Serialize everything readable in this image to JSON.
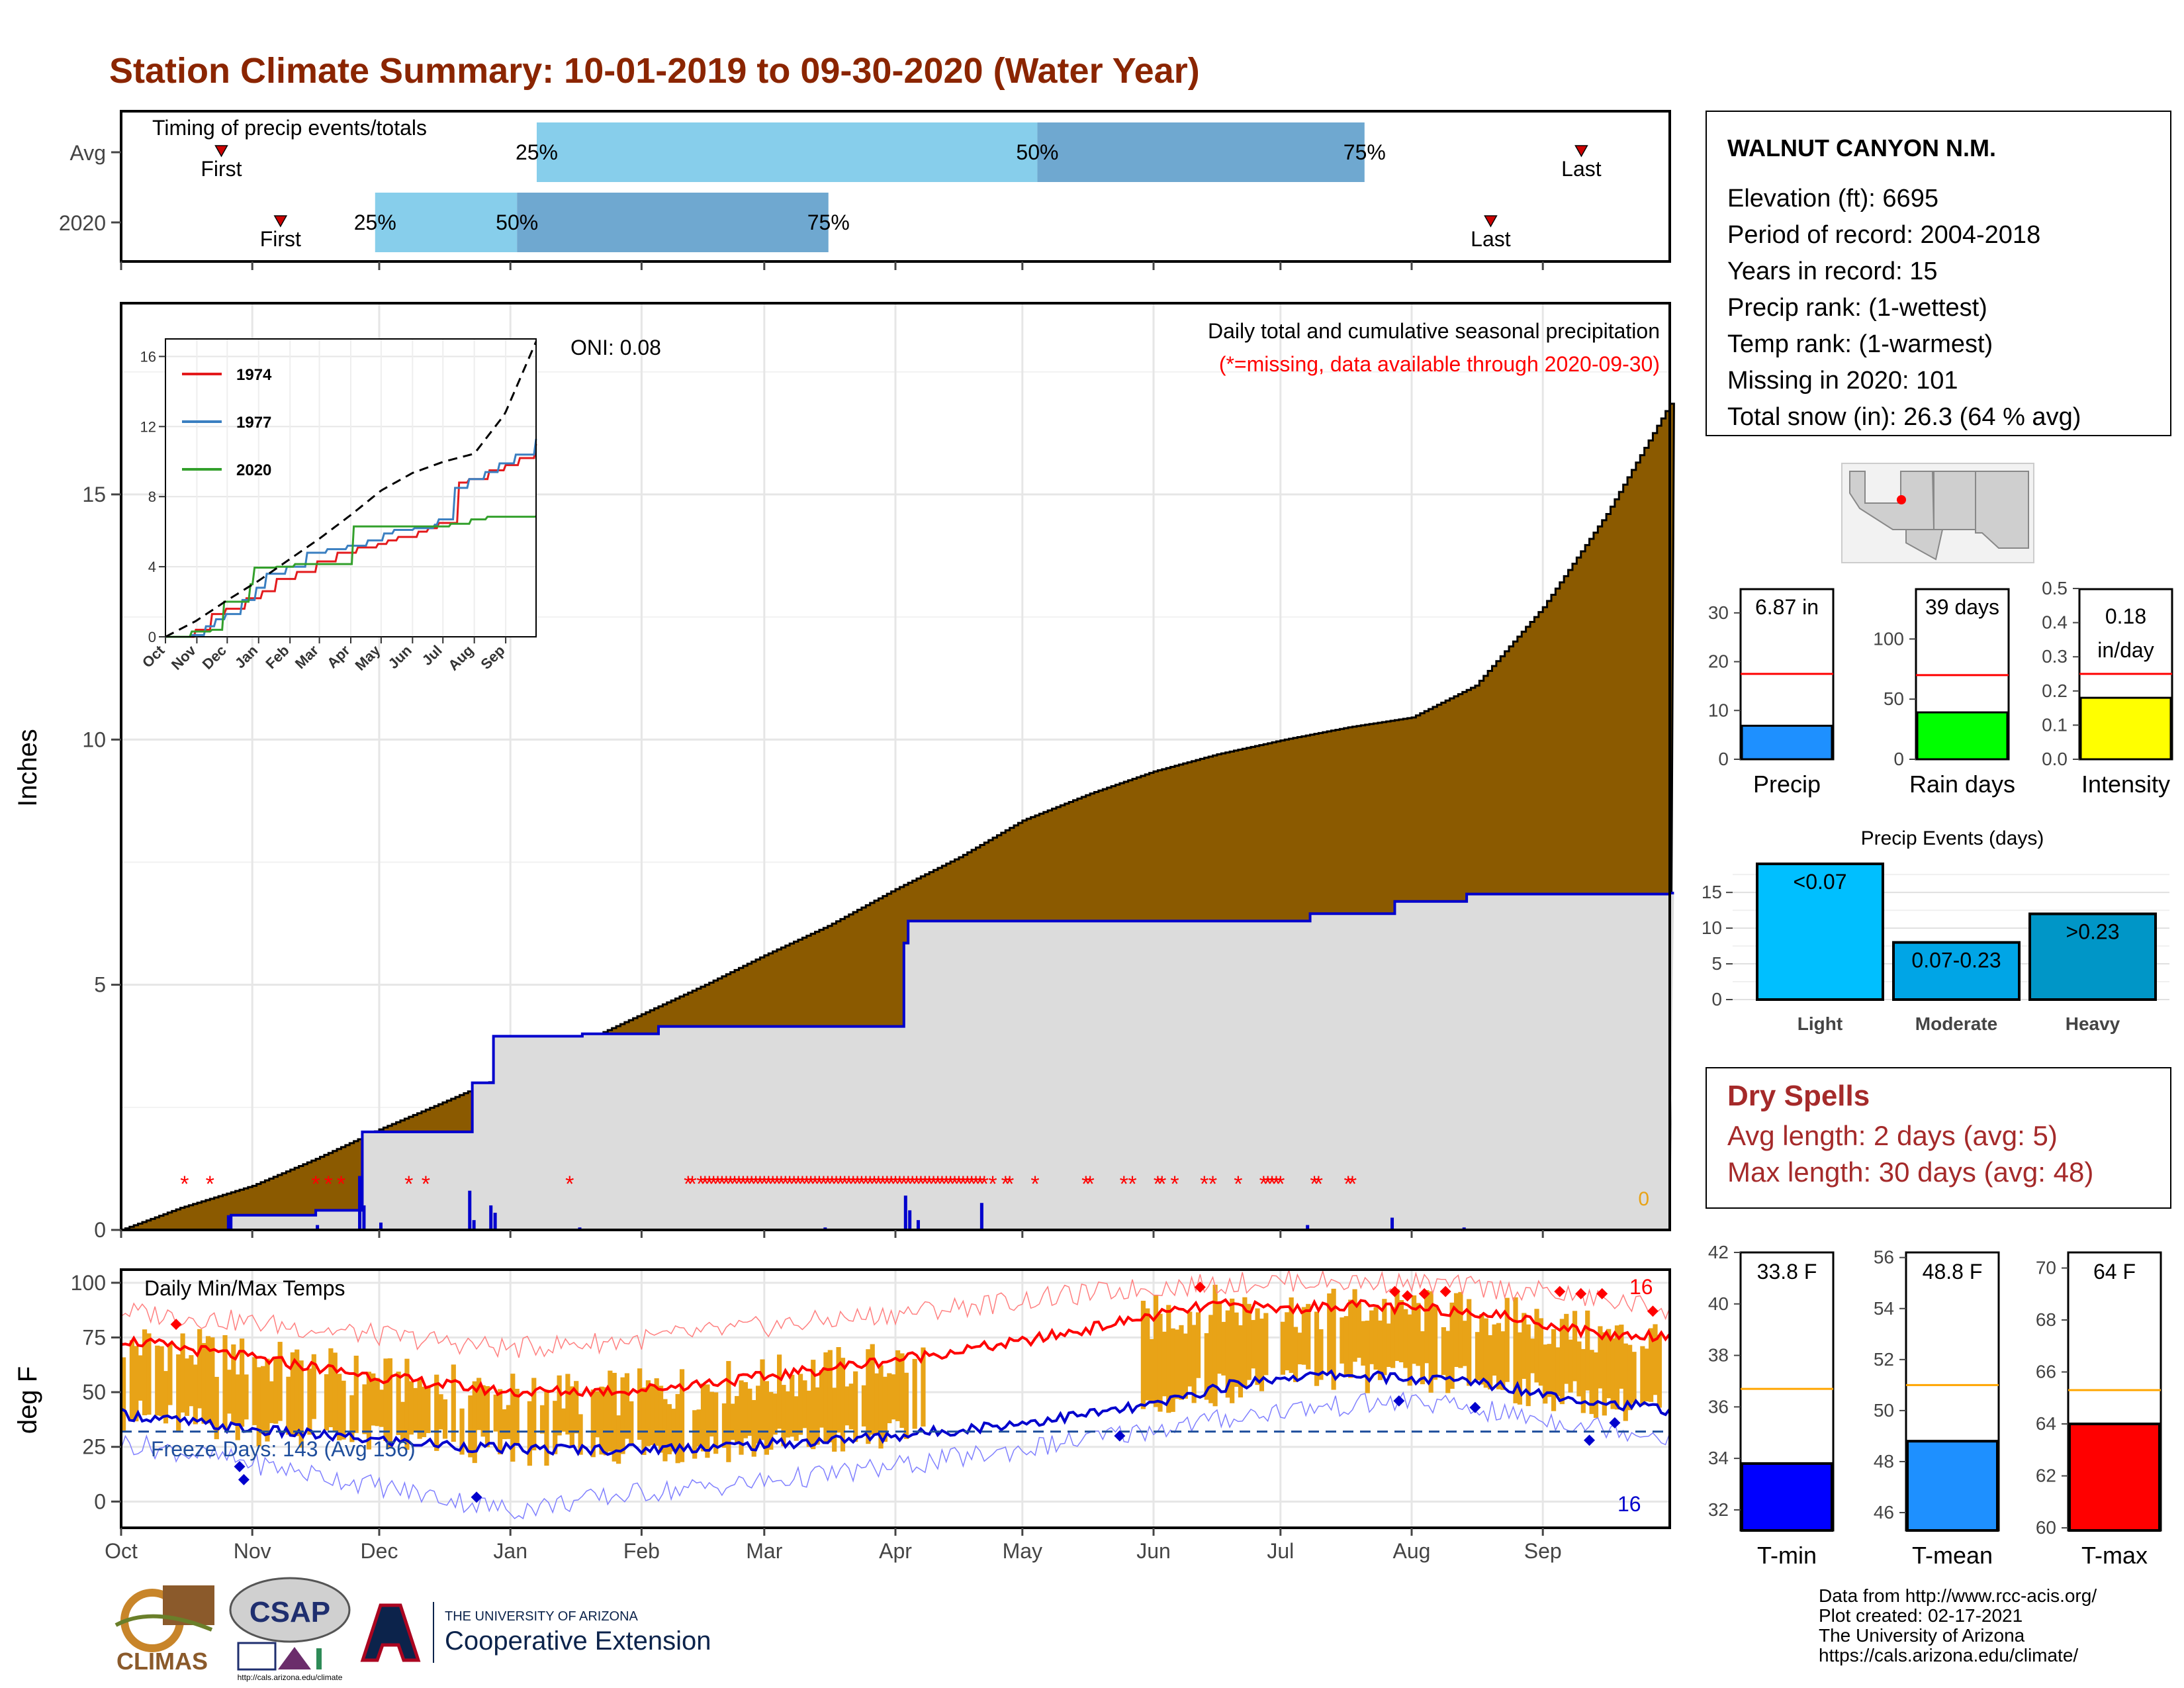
{
  "title": "Station Climate Summary: 10-01-2019 to 09-30-2020 (Water Year)",
  "timing": {
    "label": "Timing of precip events/totals",
    "rows": [
      {
        "name": "Avg",
        "first": "10-13",
        "last": "09-22",
        "q25": "01-01",
        "q50": "05-07",
        "q75": "07-29",
        "first_label": "First",
        "last_label": "Last",
        "q25_label": "25%",
        "q50_label": "50%",
        "q75_label": "75%"
      },
      {
        "name": "2020",
        "first": "10-28",
        "last": "08-30",
        "q25": "11-21",
        "q50": "12-27",
        "q75": "03-15",
        "first_label": "First",
        "last_label": "Last",
        "q25_label": "25%",
        "q50_label": "50%",
        "q75_label": "75%"
      }
    ]
  },
  "months": [
    "Oct",
    "Nov",
    "Dec",
    "Jan",
    "Feb",
    "Mar",
    "Apr",
    "May",
    "Jun",
    "Jul",
    "Aug",
    "Sep"
  ],
  "main": {
    "ylabel": "Inches",
    "yticks": [
      0,
      5,
      10,
      15
    ],
    "ylim": [
      0,
      18.9
    ],
    "title": "Daily total and cumulative seasonal precipitation",
    "missing_note": "(*=missing, data available through 2020-09-30)",
    "oni": "ONI: 0.08",
    "snow_label": "0"
  },
  "chart_data": {
    "type": "area",
    "series": [
      {
        "name": "Avg cumulative",
        "days": [
          0,
          14,
          31,
          46,
          61,
          76,
          92,
          107,
          123,
          138,
          152,
          167,
          183,
          198,
          213,
          229,
          244,
          259,
          275,
          290,
          305,
          320,
          336,
          351,
          366
        ],
        "values": [
          0,
          0.45,
          0.9,
          1.45,
          2.05,
          2.6,
          3.2,
          3.75,
          4.4,
          5.0,
          5.6,
          6.2,
          6.95,
          7.6,
          8.35,
          8.9,
          9.35,
          9.7,
          10.0,
          10.25,
          10.45,
          11.1,
          12.7,
          14.6,
          16.85
        ]
      },
      {
        "name": "2020 cumulative",
        "days": [
          0,
          25,
          26,
          45,
          46,
          56,
          57,
          60,
          61,
          82,
          83,
          87,
          88,
          108,
          109,
          126,
          127,
          148,
          149,
          157,
          158,
          166,
          167,
          185,
          186,
          280,
          281,
          300,
          301,
          317,
          318,
          366
        ],
        "values": [
          0,
          0,
          0.3,
          0.3,
          0.4,
          0.4,
          2.0,
          2.0,
          2.0,
          2.0,
          3.0,
          3.0,
          3.95,
          3.95,
          4.0,
          4.0,
          4.15,
          4.15,
          4.15,
          4.15,
          4.15,
          4.15,
          4.15,
          5.85,
          6.3,
          6.3,
          6.45,
          6.45,
          6.7,
          6.7,
          6.85,
          6.87
        ]
      }
    ],
    "missing_days": [
      15,
      21,
      46,
      49,
      52,
      68,
      72,
      106,
      134,
      135,
      137,
      138,
      139,
      140,
      141,
      142,
      143,
      144,
      145,
      146,
      147,
      148,
      149,
      150,
      151,
      152,
      153,
      154,
      155,
      156,
      157,
      158,
      159,
      160,
      161,
      162,
      163,
      164,
      165,
      166,
      167,
      168,
      169,
      170,
      171,
      172,
      173,
      174,
      175,
      176,
      177,
      178,
      179,
      180,
      181,
      182,
      183,
      184,
      185,
      186,
      187,
      188,
      189,
      190,
      191,
      192,
      193,
      194,
      195,
      196,
      197,
      198,
      199,
      200,
      201,
      202,
      203,
      204,
      206,
      209,
      210,
      216,
      228,
      229,
      237,
      239,
      245,
      246,
      249,
      256,
      258,
      264,
      270,
      271,
      272,
      273,
      274,
      282,
      283,
      290,
      291
    ],
    "daily_precip": [
      {
        "day": 25,
        "value": 0.3
      },
      {
        "day": 46,
        "value": 0.1
      },
      {
        "day": 56,
        "value": 1.1
      },
      {
        "day": 57,
        "value": 0.5
      },
      {
        "day": 61,
        "value": 0.15
      },
      {
        "day": 82,
        "value": 0.8
      },
      {
        "day": 83,
        "value": 0.2
      },
      {
        "day": 87,
        "value": 0.5
      },
      {
        "day": 88,
        "value": 0.35
      },
      {
        "day": 108,
        "value": 0.05
      },
      {
        "day": 166,
        "value": 0.05
      },
      {
        "day": 185,
        "value": 0.7
      },
      {
        "day": 186,
        "value": 0.4
      },
      {
        "day": 188,
        "value": 0.2
      },
      {
        "day": 203,
        "value": 0.55
      },
      {
        "day": 280,
        "value": 0.1
      },
      {
        "day": 300,
        "value": 0.25
      },
      {
        "day": 317,
        "value": 0.05
      }
    ],
    "inset": {
      "ylim": [
        0,
        17
      ],
      "yticks": [
        0,
        4,
        8,
        12,
        16
      ],
      "series": [
        {
          "name": "1974",
          "color": "#e31a1c",
          "days": [
            0,
            20,
            30,
            45,
            60,
            80,
            95,
            110,
            130,
            150,
            170,
            190,
            210,
            220,
            230,
            250,
            260,
            270,
            290,
            300,
            320,
            335,
            350,
            365
          ],
          "values": [
            0,
            0,
            0.4,
            1.3,
            1.6,
            2.2,
            2.6,
            3.3,
            3.7,
            4.3,
            4.8,
            5.1,
            5.3,
            5.5,
            5.7,
            6.0,
            6.2,
            6.5,
            8.8,
            9.0,
            9.5,
            9.8,
            10.2,
            11.0
          ]
        },
        {
          "name": "1977",
          "color": "#3a7fc1",
          "days": [
            0,
            25,
            40,
            50,
            60,
            75,
            90,
            100,
            120,
            140,
            160,
            180,
            200,
            215,
            225,
            245,
            265,
            270,
            285,
            300,
            315,
            330,
            345,
            365
          ],
          "values": [
            0,
            0.1,
            0.6,
            1.0,
            1.3,
            2.1,
            2.8,
            3.6,
            4.0,
            4.8,
            5.0,
            5.2,
            5.5,
            5.9,
            6.1,
            6.2,
            6.4,
            6.7,
            8.5,
            9.0,
            9.4,
            9.9,
            10.4,
            11.3
          ]
        },
        {
          "name": "2020",
          "color": "#33a02c",
          "days": [
            0,
            25,
            26,
            45,
            46,
            56,
            57,
            60,
            61,
            82,
            83,
            87,
            88,
            108,
            109,
            126,
            127,
            148,
            149,
            157,
            158,
            166,
            167,
            185,
            186,
            280,
            281,
            300,
            301,
            317,
            318,
            366
          ],
          "values": [
            0,
            0,
            0.3,
            0.3,
            0.4,
            0.4,
            2.0,
            2.0,
            2.0,
            2.0,
            3.0,
            3.0,
            3.95,
            3.95,
            4.0,
            4.0,
            4.15,
            4.15,
            4.15,
            4.15,
            4.15,
            4.15,
            4.15,
            5.85,
            6.3,
            6.3,
            6.45,
            6.45,
            6.7,
            6.7,
            6.85,
            6.87
          ]
        },
        {
          "name": "Avg",
          "dashed": true,
          "days": [
            0,
            30,
            60,
            92,
            122,
            152,
            183,
            213,
            244,
            275,
            305,
            335,
            366
          ],
          "values": [
            0,
            0.9,
            2.05,
            3.2,
            4.4,
            5.6,
            6.95,
            8.35,
            9.35,
            10.0,
            10.45,
            12.7,
            16.85
          ]
        }
      ]
    },
    "temps": {
      "title": "Daily Min/Max Temps",
      "ylabel": "deg F",
      "yticks": [
        0,
        25,
        50,
        75,
        100
      ],
      "ylim": [
        -12,
        106
      ],
      "freeze_line": 32,
      "freeze_label": "Freeze Days: 143 (Avg 156)",
      "hot_count": "16",
      "cold_count": "16",
      "avg_max": {
        "days": [
          0,
          30,
          61,
          92,
          122,
          152,
          183,
          213,
          244,
          259,
          275,
          290,
          305,
          320,
          335,
          351,
          366
        ],
        "values": [
          74,
          66,
          57,
          50,
          51,
          57,
          65,
          73,
          85,
          90,
          88,
          90,
          88,
          87,
          82,
          76,
          76
        ]
      },
      "avg_min": {
        "days": [
          0,
          30,
          61,
          92,
          122,
          152,
          183,
          213,
          244,
          259,
          275,
          290,
          305,
          320,
          335,
          351,
          366
        ],
        "values": [
          40,
          33,
          28,
          24,
          24,
          26,
          30,
          36,
          44,
          52,
          57,
          58,
          56,
          55,
          50,
          45,
          42
        ]
      },
      "rec_max": {
        "days": [
          0,
          30,
          61,
          92,
          122,
          152,
          183,
          213,
          244,
          275,
          305,
          335,
          366
        ],
        "values": [
          87,
          82,
          76,
          70,
          74,
          80,
          86,
          92,
          98,
          101,
          100,
          96,
          88
        ]
      },
      "rec_min": {
        "days": [
          0,
          30,
          61,
          92,
          122,
          152,
          183,
          213,
          244,
          275,
          305,
          335,
          366
        ],
        "values": [
          27,
          18,
          7,
          -4,
          4,
          9,
          16,
          24,
          33,
          42,
          46,
          38,
          30
        ]
      }
    }
  },
  "station": {
    "name": "WALNUT CANYON N.M.",
    "lines": [
      "Elevation (ft): 6695",
      "Period of record: 2004-2018",
      "Years in record: 15",
      "Precip rank:  (1-wettest)",
      "Temp rank:  (1-warmest)",
      "Missing in 2020: 101",
      "Total snow (in): 26.3 (64 % avg)"
    ]
  },
  "stat_bars": [
    {
      "name": "Precip",
      "value": 6.87,
      "label": "6.87 in",
      "avg": 17.5,
      "ymax": 35,
      "yticks": [
        0,
        10,
        20,
        30
      ],
      "color": "#1e90ff"
    },
    {
      "name": "Rain days",
      "value": 39,
      "label": "39 days",
      "avg": 70,
      "ymax": 142,
      "yticks": [
        0,
        50,
        100
      ],
      "color": "#00ff00"
    },
    {
      "name": "Intensity",
      "value": 0.18,
      "label": "0.18 in/day",
      "avg": 0.25,
      "ymax": 0.5,
      "yticks": [
        "0.0",
        "0.1",
        "0.2",
        "0.3",
        "0.4",
        "0.5"
      ],
      "color": "#ffff00"
    }
  ],
  "events": {
    "title": "Precip Events (days)",
    "yticks": [
      0,
      5,
      10,
      15
    ],
    "ymax": 19,
    "bars": [
      {
        "name": "Light",
        "label": "<0.07",
        "value": 19,
        "color": "#00bfff"
      },
      {
        "name": "Moderate",
        "label": "0.07-0.23",
        "value": 8,
        "color": "#00a5e6"
      },
      {
        "name": "Heavy",
        "label": ">0.23",
        "value": 12,
        "color": "#0096c7"
      }
    ]
  },
  "dry_spells": {
    "title": "Dry Spells",
    "avg_length": "Avg length: 2 days (avg: 5)",
    "max_length": "Max length: 30 days (avg: 48)"
  },
  "temp_bars": [
    {
      "name": "T-min",
      "label": "33.8 F",
      "value": 33.8,
      "avg": 36.7,
      "ymin": 31.2,
      "ymax": 42.0,
      "yticks": [
        32,
        34,
        36,
        38,
        40,
        42
      ],
      "color": "#0000ff"
    },
    {
      "name": "T-mean",
      "label": "48.8 F",
      "value": 48.8,
      "avg": 51.0,
      "ymin": 45.3,
      "ymax": 56.2,
      "yticks": [
        46,
        48,
        50,
        52,
        54,
        56
      ],
      "color": "#1e90ff"
    },
    {
      "name": "T-max",
      "label": "64 F",
      "value": 64.0,
      "avg": 65.3,
      "ymin": 59.9,
      "ymax": 70.6,
      "yticks": [
        60,
        62,
        64,
        66,
        68,
        70
      ],
      "color": "#ff0000"
    }
  ],
  "footer": {
    "lines": [
      "Data from http://www.rcc-acis.org/",
      "Plot created: 02-17-2021",
      "The University of Arizona",
      "https://cals.arizona.edu/climate/"
    ],
    "climas": "CLIMAS",
    "csap": "CSAP",
    "csap_url": "http://cals.arizona.edu/climate",
    "ua_small": "THE UNIVERSITY OF ARIZONA",
    "ua_big": "Cooperative Extension"
  },
  "colors": {
    "title": "#8b2500",
    "brown": "#8b5a00",
    "grey_fill": "#dcdcdc",
    "blue": "#0000cd",
    "red": "#ff0000",
    "orange": "#e8a317",
    "light_blue": "#87ceeb",
    "mid_blue": "#6fa8d0"
  }
}
